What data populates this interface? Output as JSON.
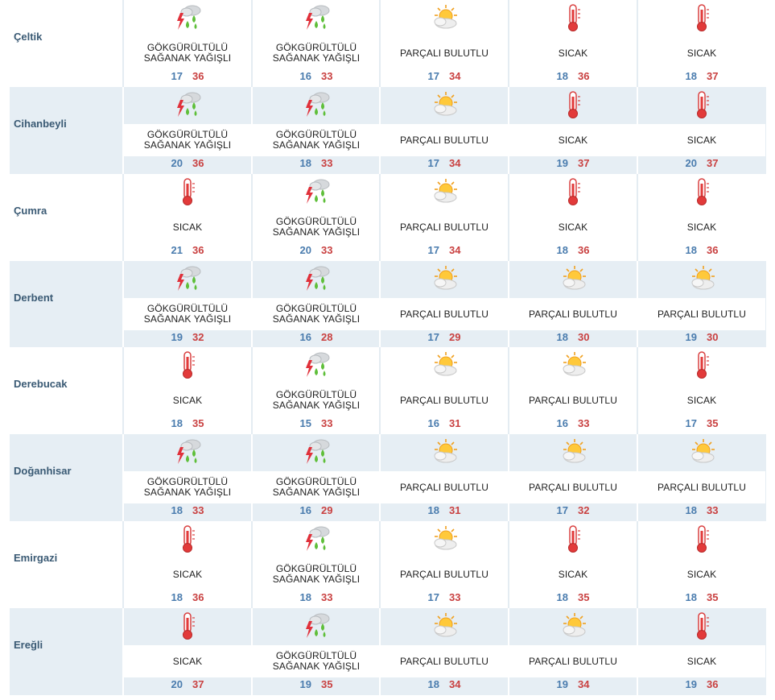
{
  "colors": {
    "city_text": "#3a5a74",
    "min_temp": "#4a7cae",
    "max_temp": "#c94141",
    "row_shade": "#e6eef4"
  },
  "conditions": {
    "storm": "GÖKGÜRÜLTÜLÜ\nSAĞANAK YAĞIŞLI",
    "partly": "PARÇALI BULUTLU",
    "hot": "SICAK"
  },
  "icons": {
    "storm": "thunderstorm-rain-icon",
    "partly": "partly-cloudy-icon",
    "hot": "thermometer-hot-icon"
  },
  "rows": [
    {
      "city": "Çeltik",
      "days": [
        {
          "cond": "storm",
          "min": "17",
          "max": "36"
        },
        {
          "cond": "storm",
          "min": "16",
          "max": "33"
        },
        {
          "cond": "partly",
          "min": "17",
          "max": "34"
        },
        {
          "cond": "hot",
          "min": "18",
          "max": "36"
        },
        {
          "cond": "hot",
          "min": "18",
          "max": "37"
        }
      ]
    },
    {
      "city": "Cihanbeyli",
      "days": [
        {
          "cond": "storm",
          "min": "20",
          "max": "36"
        },
        {
          "cond": "storm",
          "min": "18",
          "max": "33"
        },
        {
          "cond": "partly",
          "min": "17",
          "max": "34"
        },
        {
          "cond": "hot",
          "min": "19",
          "max": "37"
        },
        {
          "cond": "hot",
          "min": "20",
          "max": "37"
        }
      ]
    },
    {
      "city": "Çumra",
      "days": [
        {
          "cond": "hot",
          "min": "21",
          "max": "36"
        },
        {
          "cond": "storm",
          "min": "20",
          "max": "33"
        },
        {
          "cond": "partly",
          "min": "17",
          "max": "34"
        },
        {
          "cond": "hot",
          "min": "18",
          "max": "36"
        },
        {
          "cond": "hot",
          "min": "18",
          "max": "36"
        }
      ]
    },
    {
      "city": "Derbent",
      "days": [
        {
          "cond": "storm",
          "min": "19",
          "max": "32"
        },
        {
          "cond": "storm",
          "min": "16",
          "max": "28"
        },
        {
          "cond": "partly",
          "min": "17",
          "max": "29"
        },
        {
          "cond": "partly",
          "min": "18",
          "max": "30"
        },
        {
          "cond": "partly",
          "min": "19",
          "max": "30"
        }
      ]
    },
    {
      "city": "Derebucak",
      "days": [
        {
          "cond": "hot",
          "min": "18",
          "max": "35"
        },
        {
          "cond": "storm",
          "min": "15",
          "max": "33"
        },
        {
          "cond": "partly",
          "min": "16",
          "max": "31"
        },
        {
          "cond": "partly",
          "min": "16",
          "max": "33"
        },
        {
          "cond": "hot",
          "min": "17",
          "max": "35"
        }
      ]
    },
    {
      "city": "Doğanhisar",
      "days": [
        {
          "cond": "storm",
          "min": "18",
          "max": "33"
        },
        {
          "cond": "storm",
          "min": "16",
          "max": "29"
        },
        {
          "cond": "partly",
          "min": "18",
          "max": "31"
        },
        {
          "cond": "partly",
          "min": "17",
          "max": "32"
        },
        {
          "cond": "partly",
          "min": "18",
          "max": "33"
        }
      ]
    },
    {
      "city": "Emirgazi",
      "days": [
        {
          "cond": "hot",
          "min": "18",
          "max": "36"
        },
        {
          "cond": "storm",
          "min": "18",
          "max": "33"
        },
        {
          "cond": "partly",
          "min": "17",
          "max": "33"
        },
        {
          "cond": "hot",
          "min": "18",
          "max": "35"
        },
        {
          "cond": "hot",
          "min": "18",
          "max": "35"
        }
      ]
    },
    {
      "city": "Ereğli",
      "days": [
        {
          "cond": "hot",
          "min": "20",
          "max": "37"
        },
        {
          "cond": "storm",
          "min": "19",
          "max": "35"
        },
        {
          "cond": "partly",
          "min": "18",
          "max": "34"
        },
        {
          "cond": "partly",
          "min": "19",
          "max": "34"
        },
        {
          "cond": "hot",
          "min": "19",
          "max": "36"
        }
      ]
    }
  ]
}
